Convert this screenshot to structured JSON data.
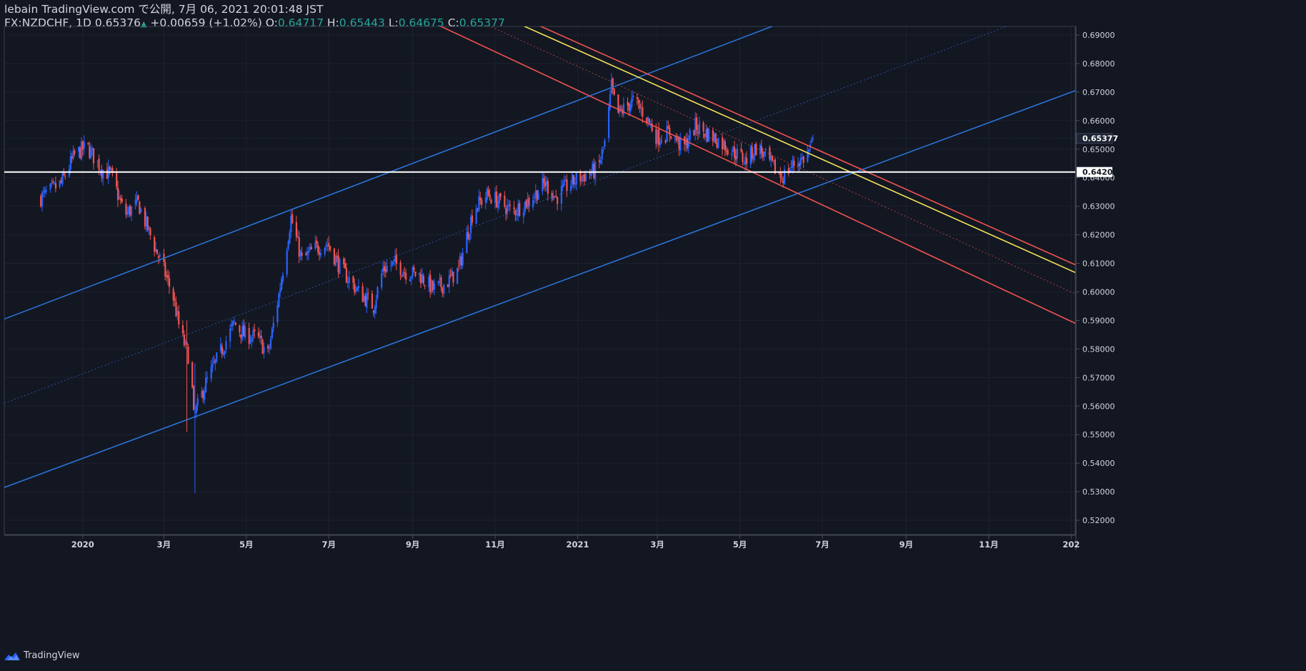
{
  "header": {
    "line1": "lebain TradingView.com で公開, 7月 06, 2021 20:01:48 JST",
    "symbol": "FX:NZDCHF, 1D",
    "last": "0.65376",
    "change": "+0.00659 (+1.02%)",
    "o_label": "O:",
    "o_value": "0.64717",
    "h_label": "H:",
    "h_value": "0.65443",
    "l_label": "L:",
    "l_value": "0.64675",
    "c_label": "C:",
    "c_value": "0.65377"
  },
  "footer": {
    "brand": "TradingView"
  },
  "colors": {
    "background": "#131722",
    "up": "#2962ff",
    "down": "#ef5350",
    "channel_blue": "#2a72d6",
    "channel_red": "#f05350",
    "trend_yellow": "#f2e35a",
    "level_white": "#ffffff",
    "axis_text": "#d1d4dc",
    "grid": "#1e2230"
  },
  "chart_data": {
    "type": "candlestick",
    "symbol": "FX:NZDCHF",
    "timeframe": "1D",
    "ylim": [
      0.515,
      0.693
    ],
    "y_ticks": [
      "0.69000",
      "0.68000",
      "0.67000",
      "0.66000",
      "0.65000",
      "0.64000",
      "0.63000",
      "0.62000",
      "0.61000",
      "0.60000",
      "0.59000",
      "0.58000",
      "0.57000",
      "0.56000",
      "0.55000",
      "0.54000",
      "0.53000",
      "0.52000"
    ],
    "x_ticks": [
      "2020",
      "3月",
      "5月",
      "7月",
      "9月",
      "11月",
      "2021",
      "3月",
      "5月",
      "7月",
      "9月",
      "11月",
      "202"
    ],
    "x_tick_days": [
      31,
      91,
      152,
      213,
      275,
      336,
      397,
      456,
      517,
      578,
      640,
      701,
      762
    ],
    "x_range_days": [
      -27,
      765
    ],
    "price_levels": [
      {
        "value": 0.65377,
        "label": "0.65377",
        "style": "last"
      },
      {
        "value": 0.642,
        "label": "0.64200",
        "style": "level"
      }
    ],
    "trend_lines": [
      {
        "name": "blue-channel-upper",
        "color": "blue",
        "dash": false,
        "p1": [
          -27,
          0.5905
        ],
        "p2": [
          765,
          0.7335
        ]
      },
      {
        "name": "blue-channel-lower",
        "color": "blue",
        "dash": false,
        "p1": [
          -27,
          0.5315
        ],
        "p2": [
          765,
          0.6705
        ]
      },
      {
        "name": "blue-channel-mid",
        "color": "blue",
        "dash": true,
        "p1": [
          -27,
          0.561
        ],
        "p2": [
          765,
          0.702
        ]
      },
      {
        "name": "red-channel-upper",
        "color": "red",
        "dash": false,
        "p1": [
          351,
          0.697
        ],
        "p2": [
          765,
          0.6095
        ]
      },
      {
        "name": "red-channel-lower",
        "color": "red",
        "dash": false,
        "p1": [
          278,
          0.697
        ],
        "p2": [
          765,
          0.589
        ]
      },
      {
        "name": "red-channel-mid",
        "color": "red",
        "dash": true,
        "p1": [
          314,
          0.697
        ],
        "p2": [
          765,
          0.5993
        ]
      },
      {
        "name": "yellow-trend",
        "color": "yellow",
        "dash": false,
        "p1": [
          339,
          0.697
        ],
        "p2": [
          765,
          0.6068
        ]
      }
    ],
    "close_path": [
      [
        0,
        0.633
      ],
      [
        15,
        0.638
      ],
      [
        25,
        0.648
      ],
      [
        34,
        0.651
      ],
      [
        45,
        0.643
      ],
      [
        52,
        0.641
      ],
      [
        62,
        0.627
      ],
      [
        72,
        0.631
      ],
      [
        84,
        0.616
      ],
      [
        90,
        0.609
      ],
      [
        98,
        0.598
      ],
      [
        103,
        0.586
      ],
      [
        111,
        0.575
      ],
      [
        113,
        0.556
      ],
      [
        122,
        0.568
      ],
      [
        133,
        0.579
      ],
      [
        143,
        0.589
      ],
      [
        150,
        0.585
      ],
      [
        160,
        0.584
      ],
      [
        168,
        0.578
      ],
      [
        176,
        0.599
      ],
      [
        185,
        0.626
      ],
      [
        193,
        0.611
      ],
      [
        202,
        0.615
      ],
      [
        212,
        0.617
      ],
      [
        222,
        0.608
      ],
      [
        235,
        0.6
      ],
      [
        246,
        0.595
      ],
      [
        253,
        0.608
      ],
      [
        262,
        0.61
      ],
      [
        270,
        0.607
      ],
      [
        280,
        0.606
      ],
      [
        290,
        0.601
      ],
      [
        300,
        0.603
      ],
      [
        309,
        0.608
      ],
      [
        320,
        0.629
      ],
      [
        330,
        0.634
      ],
      [
        338,
        0.632
      ],
      [
        349,
        0.628
      ],
      [
        361,
        0.632
      ],
      [
        373,
        0.638
      ],
      [
        381,
        0.633
      ],
      [
        389,
        0.637
      ],
      [
        398,
        0.64
      ],
      [
        412,
        0.643
      ],
      [
        418,
        0.654
      ],
      [
        422,
        0.672
      ],
      [
        426,
        0.662
      ],
      [
        438,
        0.667
      ],
      [
        447,
        0.662
      ],
      [
        456,
        0.654
      ],
      [
        466,
        0.656
      ],
      [
        475,
        0.65
      ],
      [
        484,
        0.658
      ],
      [
        498,
        0.654
      ],
      [
        510,
        0.65
      ],
      [
        521,
        0.646
      ],
      [
        530,
        0.651
      ],
      [
        541,
        0.644
      ],
      [
        548,
        0.64
      ],
      [
        557,
        0.645
      ],
      [
        565,
        0.647
      ],
      [
        573,
        0.6537
      ]
    ]
  }
}
